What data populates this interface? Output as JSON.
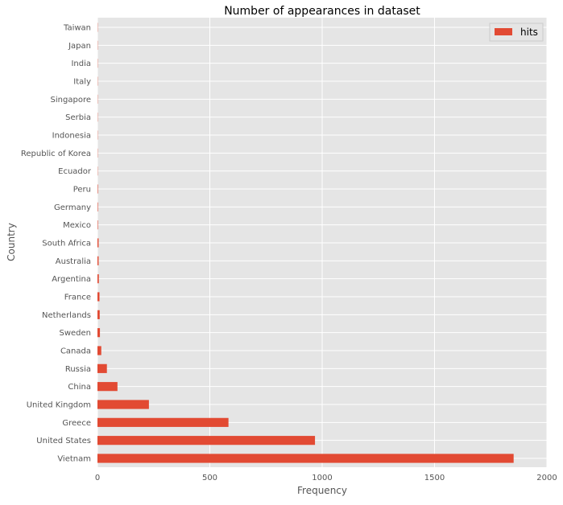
{
  "chart_data": {
    "type": "bar",
    "orientation": "horizontal",
    "title": "Number of appearances in dataset",
    "xlabel": "Frequency",
    "ylabel": "Country",
    "xlim": [
      0,
      2000
    ],
    "xticks": [
      0,
      500,
      1000,
      1500,
      2000
    ],
    "grid": true,
    "legend": {
      "position": "top-right",
      "entries": [
        "hits"
      ]
    },
    "categories": [
      "Vietnam",
      "United States",
      "Greece",
      "United Kingdom",
      "China",
      "Russia",
      "Canada",
      "Sweden",
      "Netherlands",
      "France",
      "Argentina",
      "Australia",
      "South Africa",
      "Mexico",
      "Germany",
      "Peru",
      "Ecuador",
      "Republic of Korea",
      "Indonesia",
      "Serbia",
      "Singapore",
      "Italy",
      "India",
      "Japan",
      "Taiwan"
    ],
    "series": [
      {
        "name": "hits",
        "color": "#e24a33",
        "values": [
          1852,
          968,
          583,
          229,
          89,
          42,
          17,
          11,
          10,
          9,
          6,
          5,
          5,
          2,
          2,
          2,
          1,
          1,
          1,
          1,
          1,
          1,
          1,
          1,
          1
        ]
      }
    ]
  },
  "colors": {
    "plot_background": "#e5e5e5",
    "grid": "#ffffff",
    "text": "#555555",
    "title": "#000000"
  }
}
